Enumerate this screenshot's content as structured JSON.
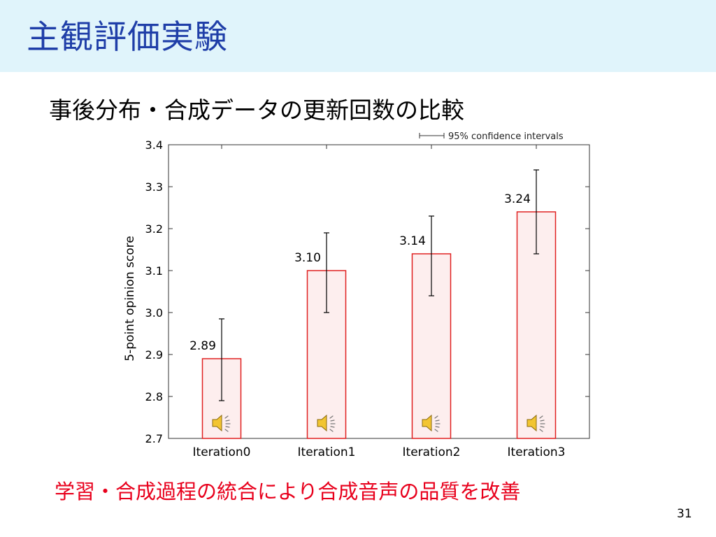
{
  "slide": {
    "title": "主観評価実験",
    "subtitle": "事後分布・合成データの更新回数の比較",
    "conclusion": "学習・合成過程の統合により合成音声の品質を改善",
    "page_number": "31"
  },
  "colors": {
    "title_band": "#e0f4fb",
    "title_text": "#1f3ea8",
    "conclusion_text": "#e8001c",
    "bar_fill": "#fdeeee",
    "bar_stroke": "#e02020"
  },
  "chart_data": {
    "type": "bar",
    "categories": [
      "Iteration0",
      "Iteration1",
      "Iteration2",
      "Iteration3"
    ],
    "values": [
      2.89,
      3.1,
      3.14,
      3.24
    ],
    "value_labels": [
      "2.89",
      "3.10",
      "3.14",
      "3.24"
    ],
    "error_low": [
      2.79,
      3.0,
      3.04,
      3.14
    ],
    "error_high": [
      2.985,
      3.19,
      3.23,
      3.34
    ],
    "ylabel": "5-point opinion score",
    "ylim": [
      2.7,
      3.4
    ],
    "yticks": [
      "2.7",
      "2.8",
      "2.9",
      "3.0",
      "3.1",
      "3.2",
      "3.3",
      "3.4"
    ],
    "legend": "95% confidence intervals",
    "legend_position": "top-right",
    "bar_icons": [
      "speaker-icon",
      "speaker-icon",
      "speaker-icon",
      "speaker-icon"
    ]
  }
}
